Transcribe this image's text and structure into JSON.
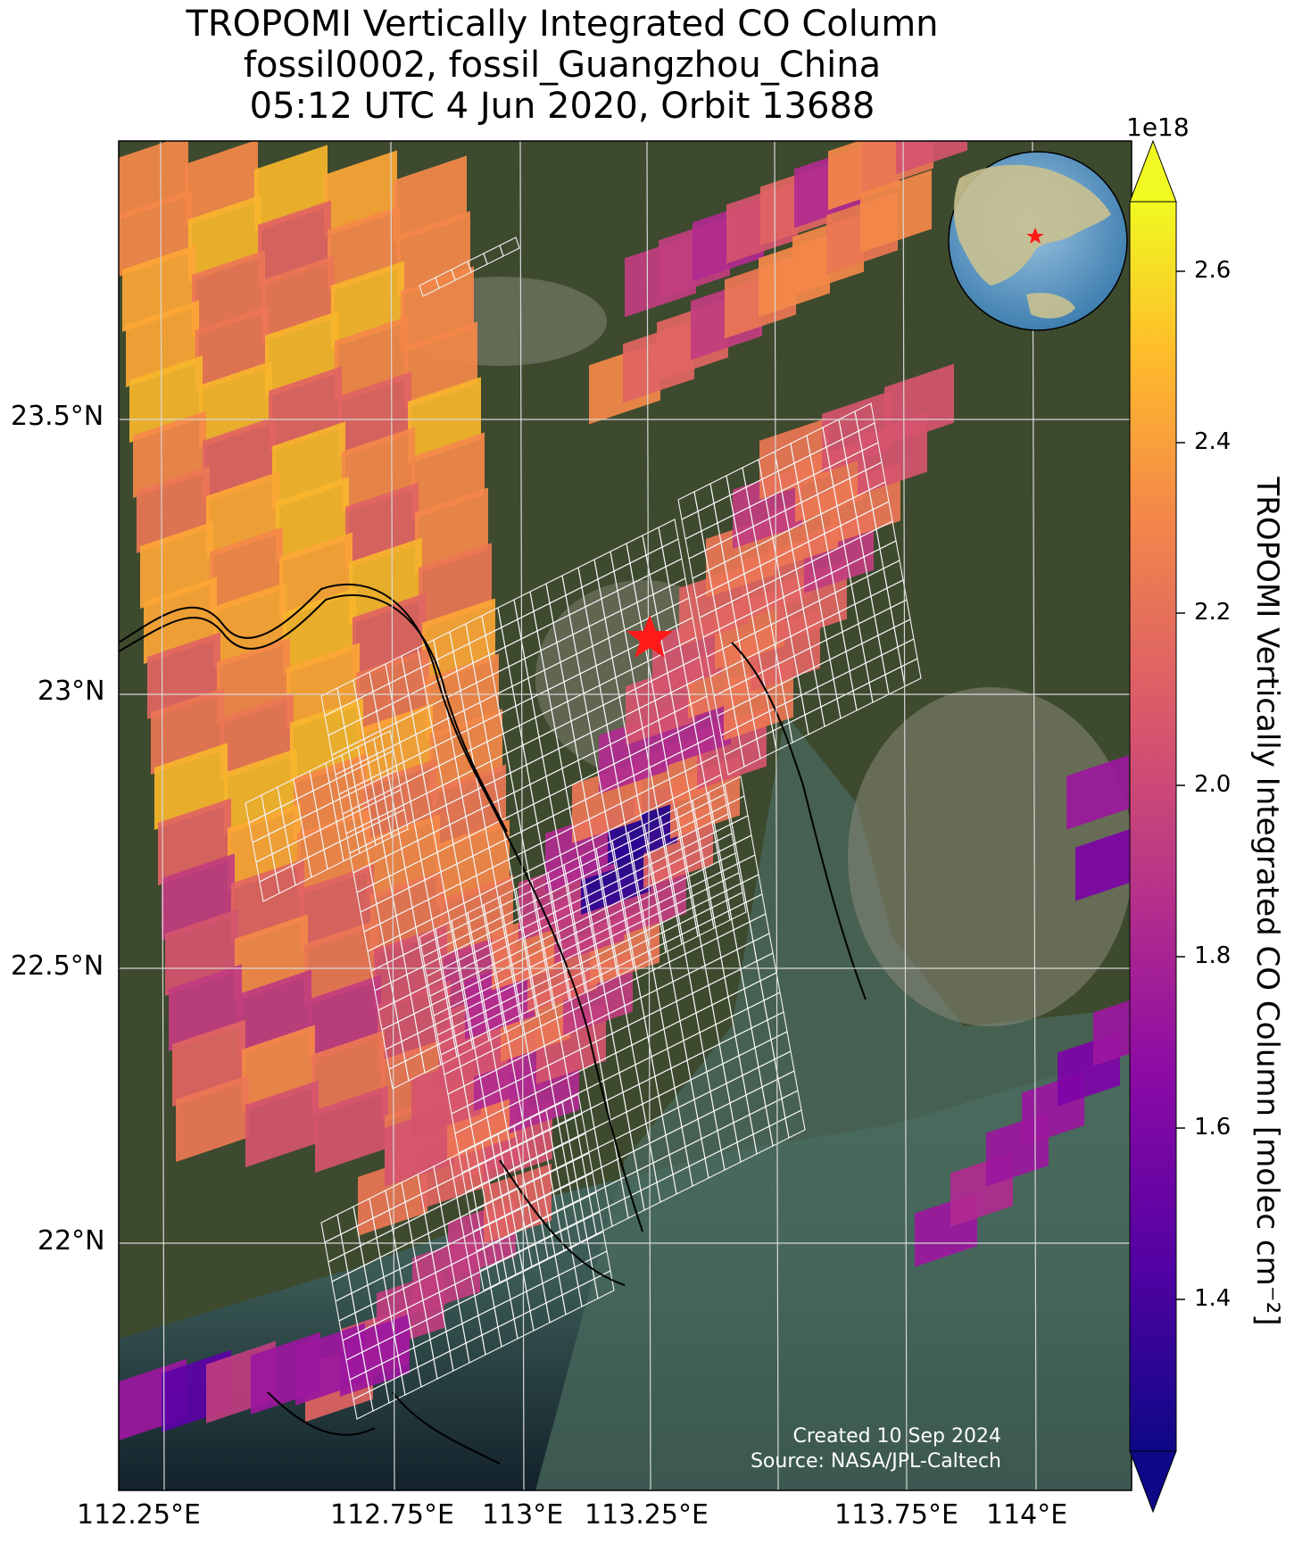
{
  "title": {
    "line1": "TROPOMI Vertically Integrated CO Column",
    "line2": "fossil0002, fossil_Guangzhou_China",
    "line3": "05:12 UTC 4 Jun 2020, Orbit 13688"
  },
  "map": {
    "lat_ticks": [
      "23.5°N",
      "23°N",
      "22.5°N",
      "22°N"
    ],
    "lon_ticks": [
      "112.25°E",
      "112.75°E",
      "113°E",
      "113.25°E",
      "113.75°E",
      "114°E"
    ],
    "target_marker": "red-star",
    "credit_line1": "Created 10 Sep 2024",
    "credit_line2": "Source: NASA/JPL-Caltech",
    "colors": {
      "land": "#3d4a2e",
      "urban": "#8b8a7a",
      "water": "#3f6d66",
      "sea_dark": "#1a2a33",
      "grid": "#d8d8d8",
      "star": "#ff1a1a"
    }
  },
  "colorbar": {
    "scale_label": "1e18",
    "label": "TROPOMI Vertically Integrated CO Column [molec cm⁻²]",
    "ticks": [
      "2.6",
      "2.4",
      "2.2",
      "2.0",
      "1.8",
      "1.6",
      "1.4"
    ],
    "colormap": "plasma",
    "extend": "both"
  }
}
